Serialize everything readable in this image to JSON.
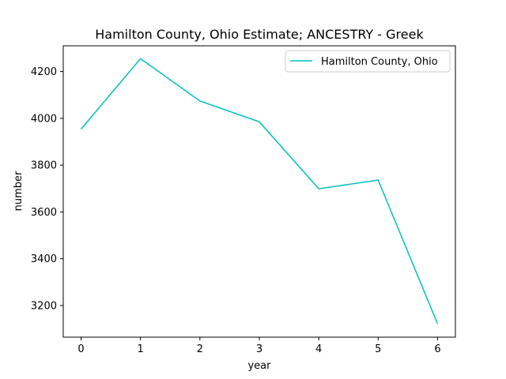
{
  "chart_data": {
    "type": "line",
    "title": "Hamilton County, Ohio Estimate; ANCESTRY - Greek",
    "xlabel": "year",
    "ylabel": "number",
    "x": [
      0,
      1,
      2,
      3,
      4,
      5,
      6
    ],
    "x_ticks": [
      "0",
      "1",
      "2",
      "3",
      "4",
      "5",
      "6"
    ],
    "y_ticks": [
      3200,
      3400,
      3600,
      3800,
      4000,
      4200
    ],
    "xlim": [
      -0.3,
      6.3
    ],
    "ylim": [
      3065,
      4310
    ],
    "grid": false,
    "legend_position": "top-right",
    "series": [
      {
        "name": "Hamilton County, Ohio",
        "color": "#00bfbf",
        "values": [
          3954,
          4255,
          4074,
          3985,
          3699,
          3736,
          3122
        ]
      }
    ]
  }
}
